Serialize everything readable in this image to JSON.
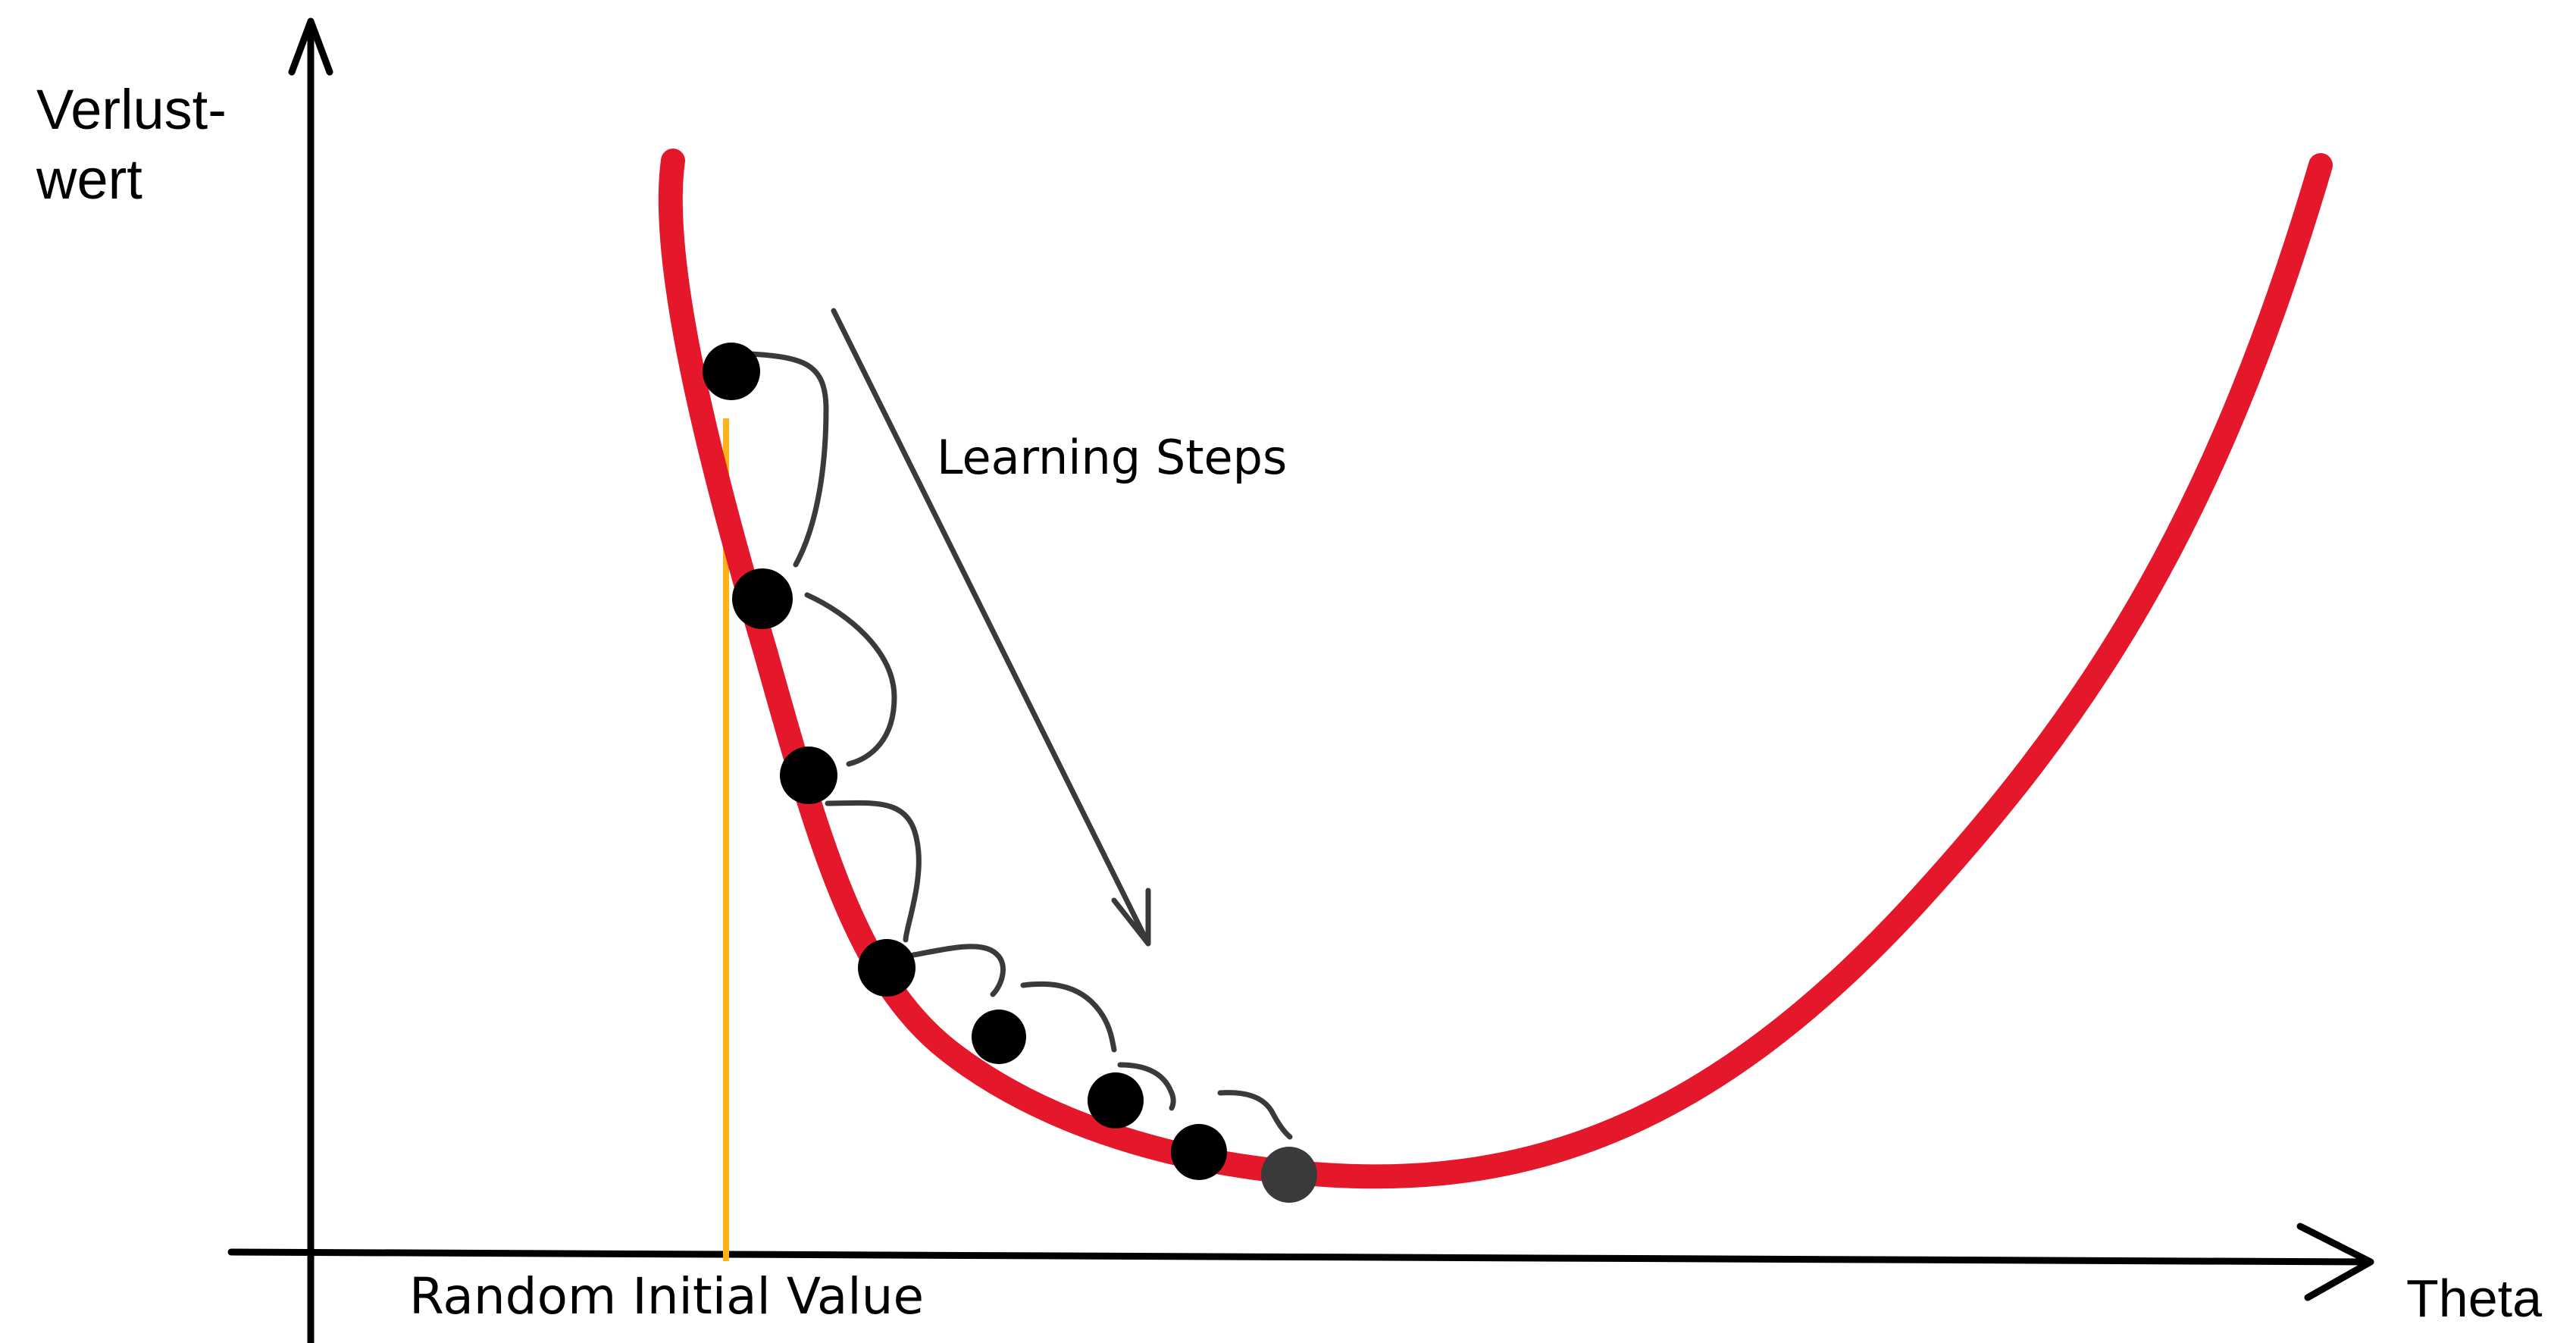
{
  "y_axis": {
    "label_line1": "Verlust-",
    "label_line2": "wert"
  },
  "x_axis": {
    "label": "Theta"
  },
  "annotations": {
    "learning_steps": "Learning Steps",
    "random_initial_value": "Random Initial Value"
  },
  "colors": {
    "curve": "#e4182a",
    "axis": "#000000",
    "initial_line": "#ffb21a",
    "points": "#000000",
    "final_point": "#3a3a3a",
    "step_arcs": "#3a3a3a",
    "arrow": "#3a3a3a"
  },
  "icons": {
    "loss_curve": "u-shaped-curve",
    "step_markers": "circle"
  }
}
